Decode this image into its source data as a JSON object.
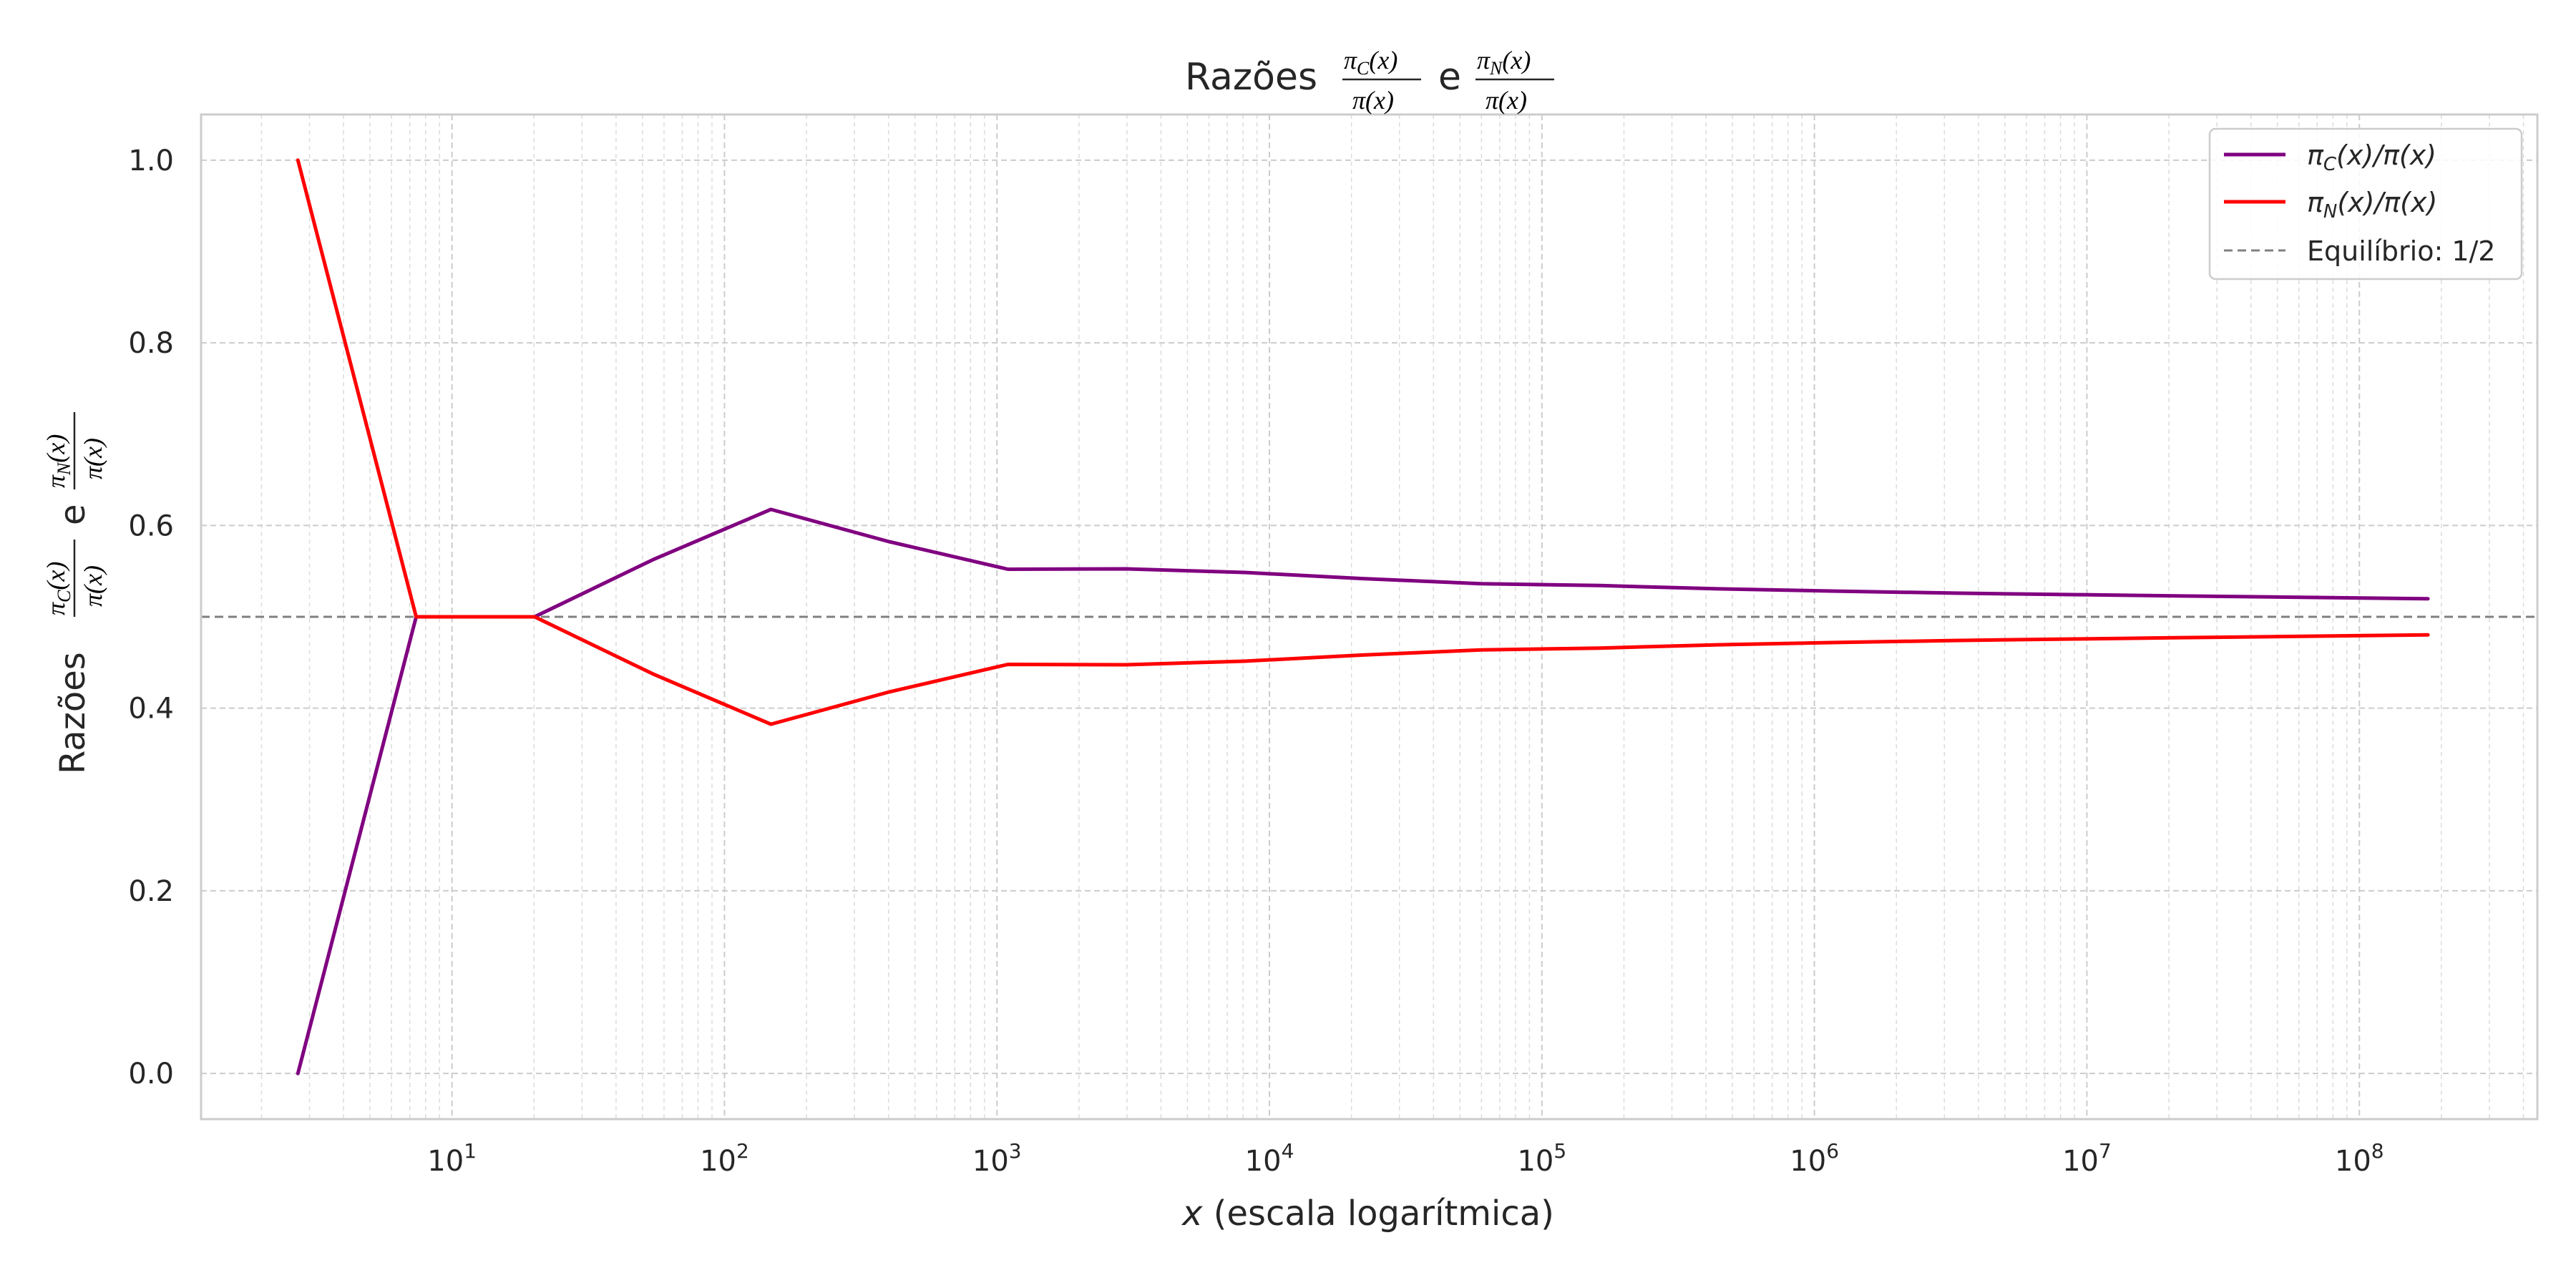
{
  "chart_data": {
    "type": "line",
    "title": {
      "prefix": "Razões",
      "conj": "e",
      "frac1_num": "π",
      "frac1_sub": "C",
      "frac1_num_tail": "(x)",
      "frac1_den": "π(x)",
      "frac2_num": "π",
      "frac2_sub": "N",
      "frac2_num_tail": "(x)",
      "frac2_den": "π(x)"
    },
    "xlabel": {
      "var": "x",
      "rest": " (escala logarítmica)"
    },
    "ylabel": {
      "prefix": "Razões",
      "conj": "e"
    },
    "xscale": "log",
    "xlim": [
      1.2,
      450000000
    ],
    "ylim": [
      -0.05,
      1.05
    ],
    "yticks": [
      {
        "value": 0.0,
        "label": "0.0"
      },
      {
        "value": 0.2,
        "label": "0.2"
      },
      {
        "value": 0.4,
        "label": "0.4"
      },
      {
        "value": 0.6,
        "label": "0.6"
      },
      {
        "value": 0.8,
        "label": "0.8"
      },
      {
        "value": 1.0,
        "label": "1.0"
      }
    ],
    "xticks": [
      {
        "value": 10,
        "base": "10",
        "exp": "1"
      },
      {
        "value": 100,
        "base": "10",
        "exp": "2"
      },
      {
        "value": 1000,
        "base": "10",
        "exp": "3"
      },
      {
        "value": 10000,
        "base": "10",
        "exp": "4"
      },
      {
        "value": 100000,
        "base": "10",
        "exp": "5"
      },
      {
        "value": 1000000,
        "base": "10",
        "exp": "6"
      },
      {
        "value": 10000000,
        "base": "10",
        "exp": "7"
      },
      {
        "value": 100000000,
        "base": "10",
        "exp": "8"
      }
    ],
    "grid": true,
    "legend_position": "top-right",
    "series": [
      {
        "name": "πC(x)/π(x)",
        "legend": {
          "pi": "π",
          "sub": "C",
          "tail": "(x)/π(x)"
        },
        "color": "#800080",
        "style": "solid",
        "x": [
          2.72,
          7.39,
          20.1,
          54.6,
          148,
          403,
          1097,
          2981,
          8103,
          22026,
          59874,
          162755,
          442413,
          1202604,
          3269017,
          8886111,
          24154953,
          65659969,
          178482301
        ],
        "y": [
          0.0,
          0.5,
          0.5,
          0.5625,
          0.6176,
          0.5822,
          0.5521,
          0.5525,
          0.5486,
          0.5418,
          0.5363,
          0.5342,
          0.5306,
          0.5281,
          0.5259,
          0.5243,
          0.5227,
          0.5212,
          0.5198
        ]
      },
      {
        "name": "πN(x)/π(x)",
        "legend": {
          "pi": "π",
          "sub": "N",
          "tail": "(x)/π(x)"
        },
        "color": "#ff0000",
        "style": "solid",
        "x": [
          2.72,
          7.39,
          20.1,
          54.6,
          148,
          403,
          1097,
          2981,
          8103,
          22026,
          59874,
          162755,
          442413,
          1202604,
          3269017,
          8886111,
          24154953,
          65659969,
          178482301
        ],
        "y": [
          1.0,
          0.5,
          0.5,
          0.4375,
          0.3824,
          0.4178,
          0.4479,
          0.4475,
          0.4514,
          0.4582,
          0.4637,
          0.4658,
          0.4694,
          0.4719,
          0.4741,
          0.4757,
          0.4773,
          0.4788,
          0.4802
        ]
      }
    ],
    "reference_line": {
      "name": "Equilíbrio: 1/2",
      "y": 0.5,
      "color": "#808080",
      "style": "dashed"
    }
  }
}
